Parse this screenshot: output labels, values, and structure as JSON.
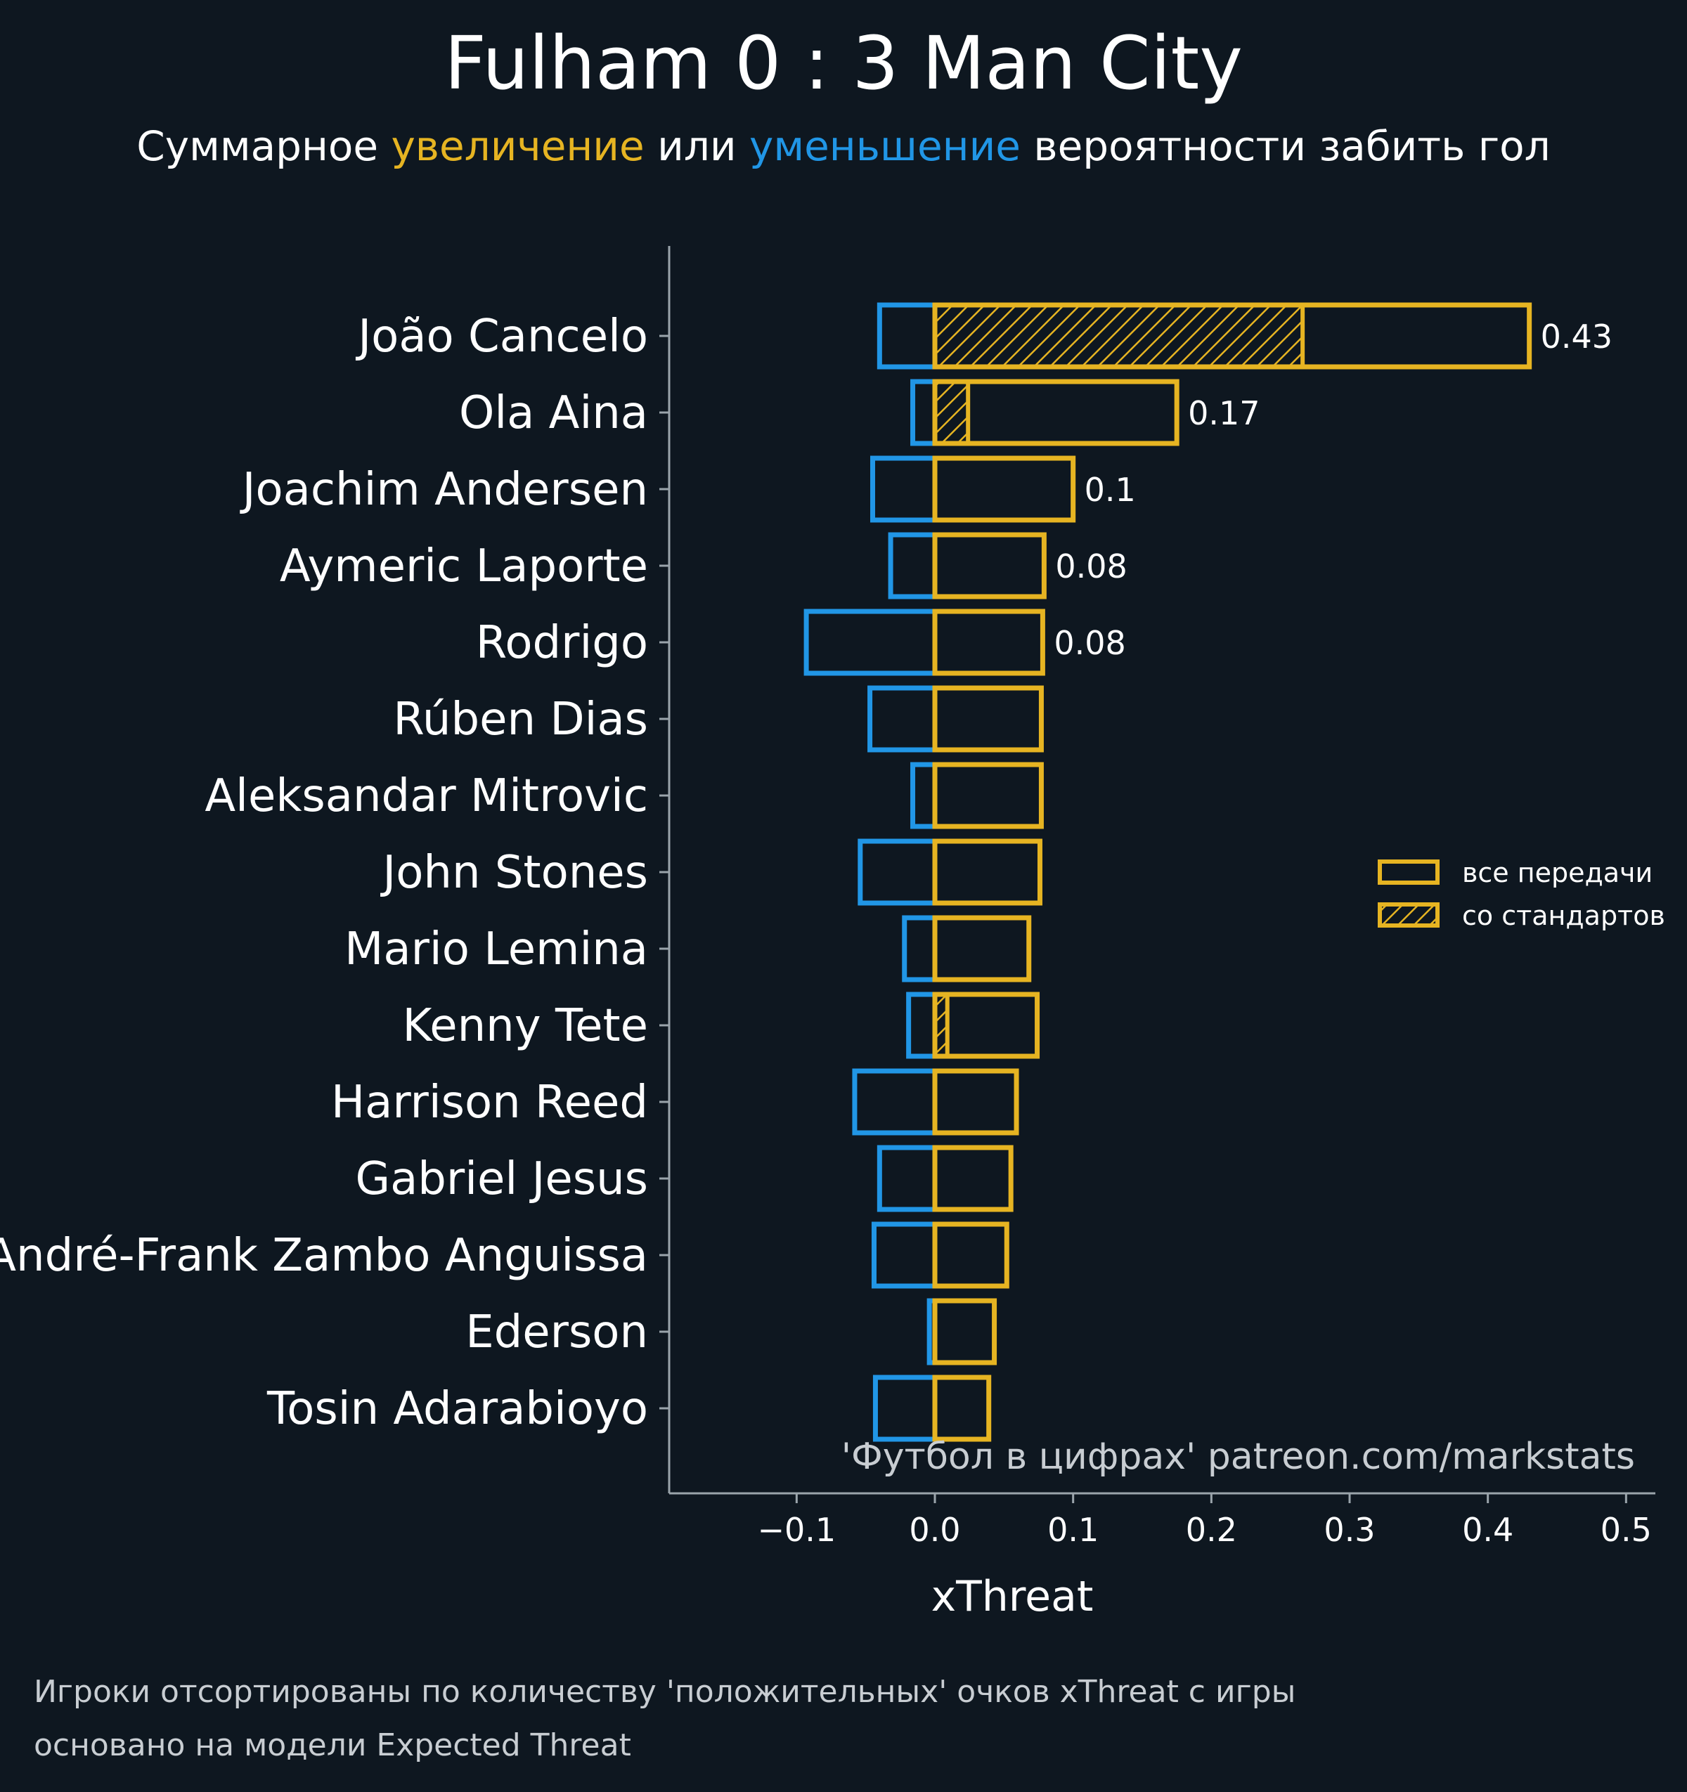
{
  "header": {
    "title": "Fulham 0 : 3 Man City",
    "subtitle_parts": [
      "Суммарное ",
      "увеличение",
      " или ",
      "уменьшение",
      " вероятности забить гол"
    ]
  },
  "colors": {
    "background": "#0e1720",
    "positive": "#e6b422",
    "negative": "#2196e6",
    "axis": "#9aa4ab"
  },
  "chart_data": {
    "type": "bar",
    "orientation": "horizontal",
    "categories": [
      "João Cancelo",
      "Ola Aina",
      "Joachim Andersen",
      "Aymeric Laporte",
      "Rodrigo",
      "Rúben Dias",
      "Aleksandar Mitrovic",
      "John Stones",
      "Mario Lemina",
      "Kenny Tete",
      "Harrison Reed",
      "Gabriel Jesus",
      "André-Frank Zambo Anguissa",
      "Ederson",
      "Tosin Adarabioyo"
    ],
    "series": [
      {
        "name": "все передачи",
        "values": [
          0.43,
          0.175,
          0.1,
          0.079,
          0.078,
          0.077,
          0.077,
          0.076,
          0.068,
          0.074,
          0.059,
          0.055,
          0.052,
          0.043,
          0.039
        ]
      },
      {
        "name": "со стандартов",
        "values": [
          0.266,
          0.024,
          0,
          0,
          0,
          0,
          0,
          0,
          0,
          0.009,
          0,
          0,
          0,
          0,
          0
        ]
      },
      {
        "values": [
          -0.04,
          -0.016,
          -0.045,
          -0.032,
          -0.093,
          -0.047,
          -0.016,
          -0.054,
          -0.022,
          -0.019,
          -0.058,
          -0.04,
          -0.044,
          -0.004,
          -0.043
        ]
      }
    ],
    "value_labels": [
      "0.43",
      "0.17",
      "0.1",
      "0.08",
      "0.08"
    ],
    "xlim": [
      -0.2,
      0.53
    ],
    "xticks": [
      -0.1,
      0.0,
      0.1,
      0.2,
      0.3,
      0.4,
      0.5
    ],
    "xtick_labels": [
      "−0.1",
      "0.0",
      "0.1",
      "0.2",
      "0.3",
      "0.4",
      "0.5"
    ],
    "xlabel": "xThreat",
    "legend_position": "right",
    "credit": "'Футбол в цифрах' patreon.com/markstats"
  },
  "notes": [
    "Игроки отсортированы по количеству 'положительных' очков xThreat с игры",
    "основано на модели Expected Threat"
  ]
}
